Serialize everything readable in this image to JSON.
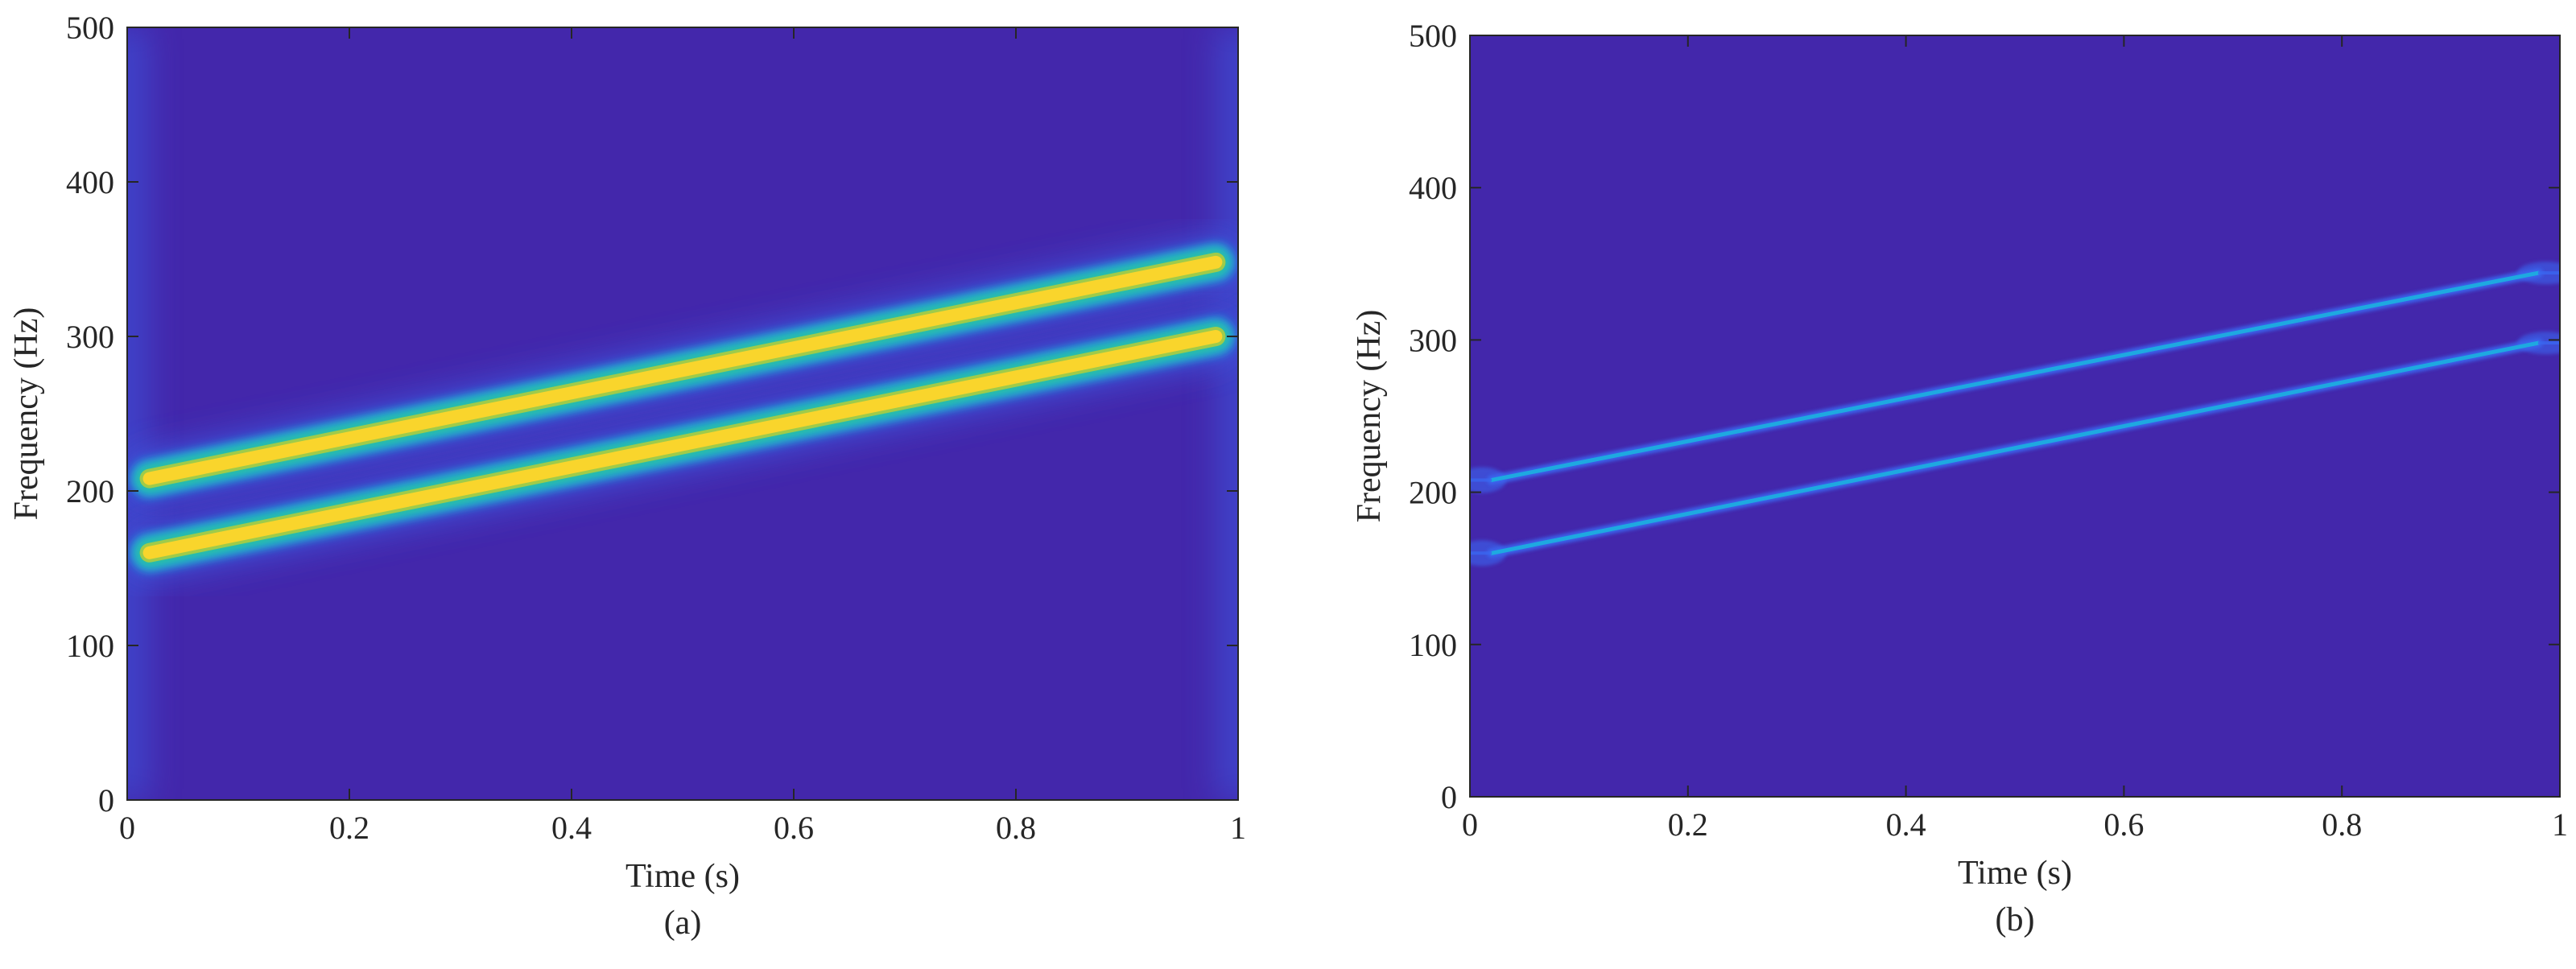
{
  "chart_data": [
    {
      "type": "heatmap",
      "panel_label": "(a)",
      "xlabel": "Time (s)",
      "ylabel": "Frequency (Hz)",
      "xlim": [
        0,
        1
      ],
      "ylim": [
        0,
        500
      ],
      "xticks": [
        0,
        0.2,
        0.4,
        0.6,
        0.8,
        1
      ],
      "xtick_labels": [
        "0",
        "0.2",
        "0.4",
        "0.6",
        "0.8",
        "1"
      ],
      "yticks": [
        0,
        100,
        200,
        300,
        400,
        500
      ],
      "ytick_labels": [
        "0",
        "100",
        "200",
        "300",
        "400",
        "500"
      ],
      "grid": false,
      "background_color": "#4327ab",
      "colormap": [
        "#4327ab",
        "#3a66f0",
        "#1ea9e0",
        "#2ac39c",
        "#9fcb4a",
        "#f9d52c"
      ],
      "ridge_style": "broad",
      "series": [
        {
          "x": [
            0.02,
            0.98
          ],
          "y": [
            160,
            300
          ]
        },
        {
          "x": [
            0.02,
            0.98
          ],
          "y": [
            208,
            348
          ]
        }
      ]
    },
    {
      "type": "heatmap",
      "panel_label": "(b)",
      "xlabel": "Time (s)",
      "ylabel": "Frequency (Hz)",
      "xlim": [
        0,
        1
      ],
      "ylim": [
        0,
        500
      ],
      "xticks": [
        0,
        0.2,
        0.4,
        0.6,
        0.8,
        1
      ],
      "xtick_labels": [
        "0",
        "0.2",
        "0.4",
        "0.6",
        "0.8",
        "1"
      ],
      "yticks": [
        0,
        100,
        200,
        300,
        400,
        500
      ],
      "ytick_labels": [
        "0",
        "100",
        "200",
        "300",
        "400",
        "500"
      ],
      "grid": false,
      "background_color": "#4327ab",
      "colormap": [
        "#4327ab",
        "#3a66f0",
        "#1ea9e0"
      ],
      "ridge_style": "sharp",
      "series": [
        {
          "x": [
            0.02,
            0.98
          ],
          "y": [
            160,
            298
          ]
        },
        {
          "x": [
            0.02,
            0.98
          ],
          "y": [
            208,
            344
          ]
        }
      ]
    }
  ]
}
